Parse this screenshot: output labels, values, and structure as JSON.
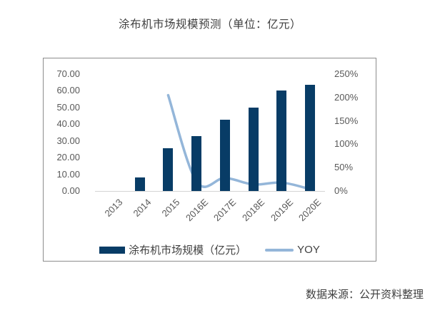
{
  "title": "涂布机市场规模预测（单位：亿元）",
  "source_note": "数据来源：公开资料整理",
  "colors": {
    "bar": "#083C66",
    "line": "#94B6D9",
    "frame_border": "#8C8C8C",
    "axis_line": "#D4D4D4",
    "title_text": "#3F3F3F",
    "axis_text": "#595959",
    "legend_text": "#404040",
    "source_text": "#404040"
  },
  "chart_data": {
    "type": "bar",
    "subtype": "bar-line-combo",
    "title": "涂布机市场规模预测（单位：亿元）",
    "categories": [
      "2013",
      "2014",
      "2015",
      "2016E",
      "2017E",
      "2018E",
      "2019E",
      "2020E"
    ],
    "series": [
      {
        "name": "涂布机市场规模（亿元）",
        "type": "bar",
        "axis": "left",
        "values": [
          0,
          8,
          25.5,
          33,
          42.5,
          50,
          60,
          63.5
        ]
      },
      {
        "name": "YOY",
        "type": "line",
        "axis": "right",
        "unit": "%",
        "values": [
          null,
          null,
          205,
          20,
          28,
          14,
          18,
          4
        ]
      }
    ],
    "left_axis": {
      "min": 0,
      "max": 70,
      "tick_labels": [
        "70.00",
        "60.00",
        "50.00",
        "40.00",
        "30.00",
        "20.00",
        "10.00",
        "0.00"
      ]
    },
    "right_axis": {
      "min": 0,
      "max": 250,
      "tick_labels": [
        "250%",
        "200%",
        "150%",
        "100%",
        "50%",
        "0%"
      ]
    },
    "grid": false,
    "legend_position": "bottom"
  }
}
